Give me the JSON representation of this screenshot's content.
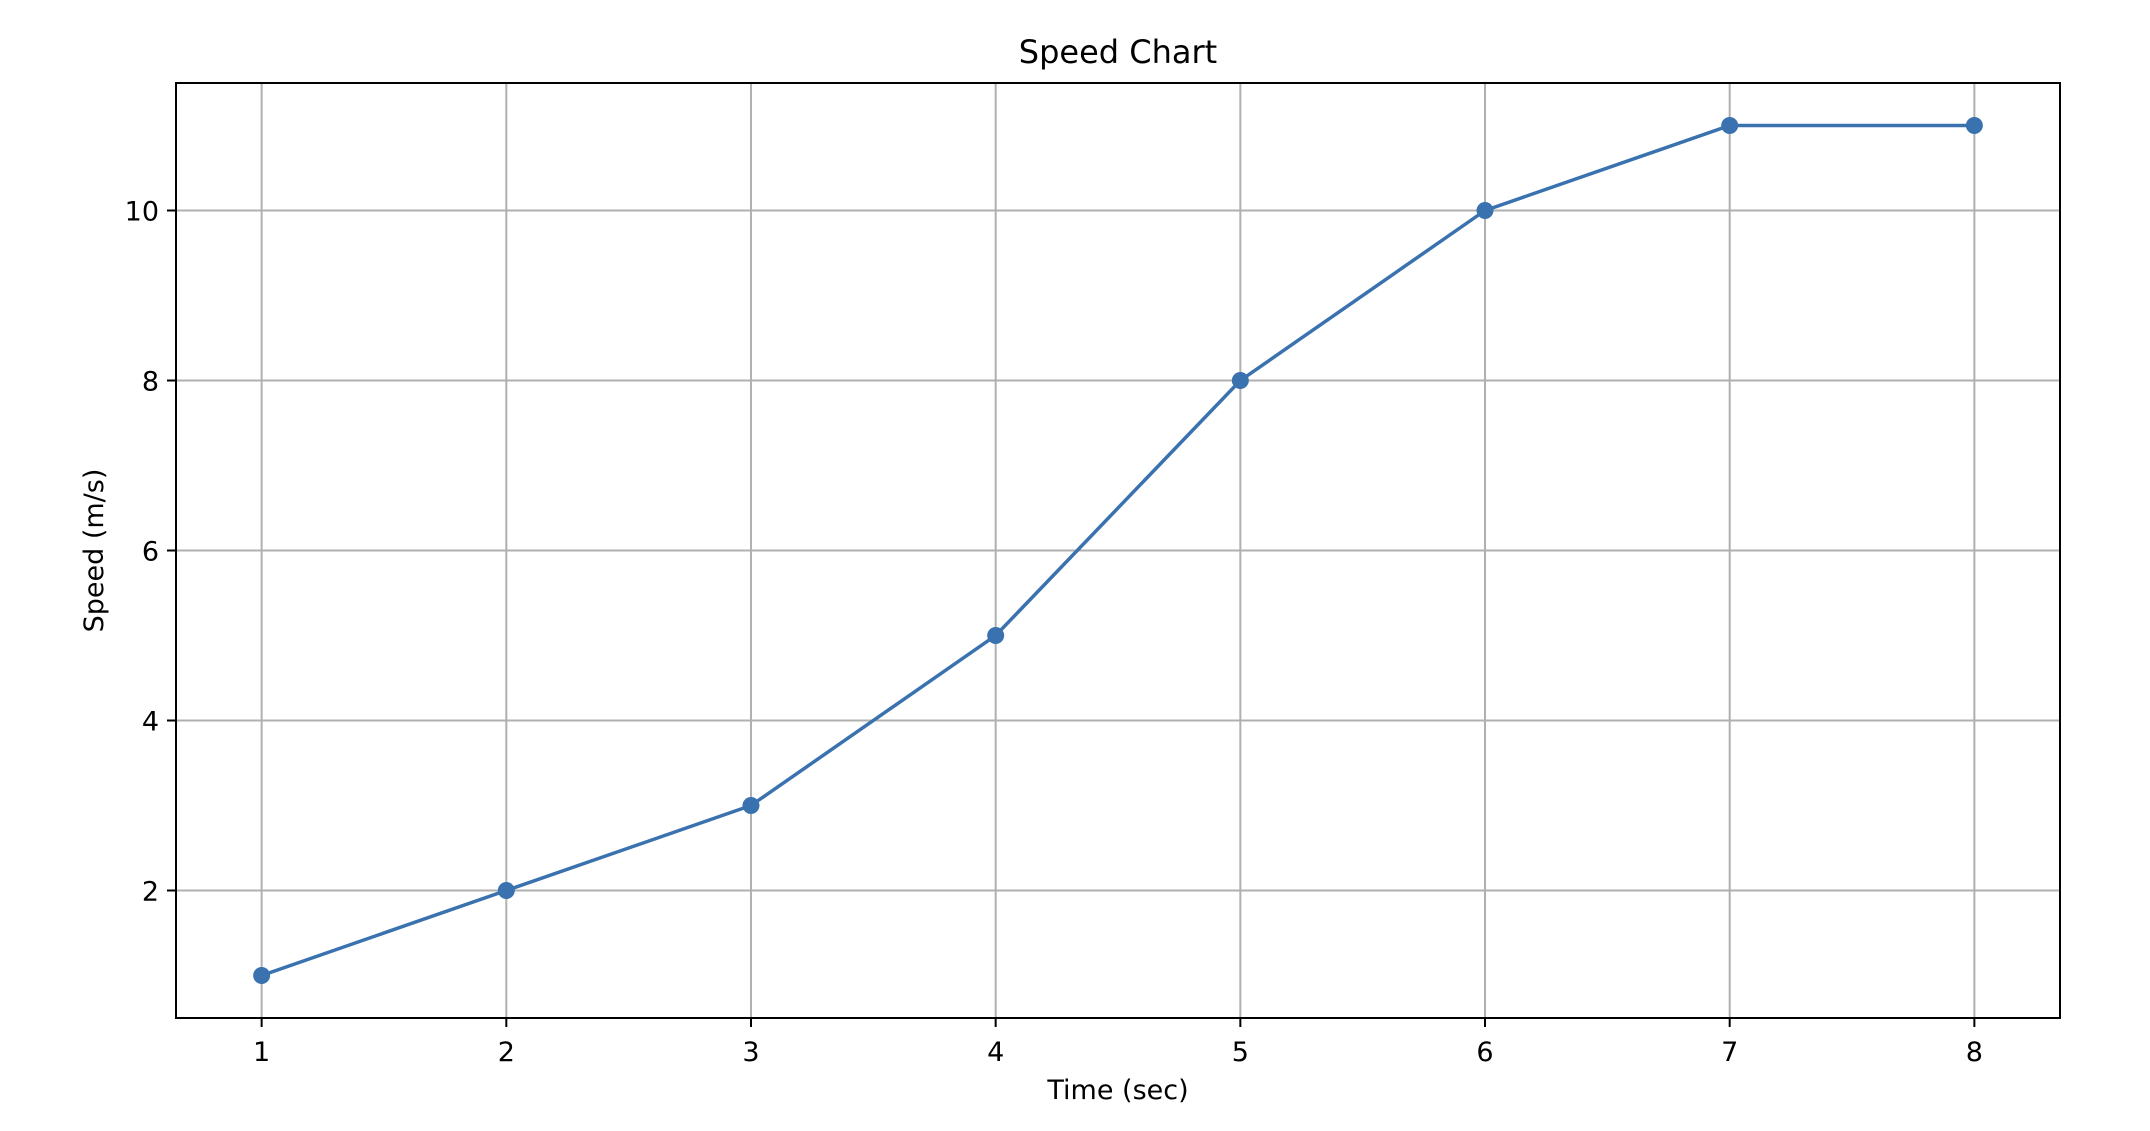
{
  "chart_data": {
    "type": "line",
    "title": "Speed Chart",
    "xlabel": "Time (sec)",
    "ylabel": "Speed (m/s)",
    "x": [
      1,
      2,
      3,
      4,
      5,
      6,
      7,
      8
    ],
    "series": [
      {
        "values": [
          1,
          2,
          3,
          5,
          8,
          10,
          11,
          11
        ]
      }
    ],
    "xlim": [
      0.65,
      8.35
    ],
    "ylim": [
      0.5,
      11.5
    ],
    "xticks": [
      "1",
      "2",
      "3",
      "4",
      "5",
      "6",
      "7",
      "8"
    ],
    "yticks": [
      "2",
      "4",
      "6",
      "8",
      "10"
    ],
    "grid": true,
    "markers": "circle",
    "colors": {
      "line": "#3a72b0",
      "grid": "#b0b0b0",
      "frame": "#000000"
    }
  }
}
